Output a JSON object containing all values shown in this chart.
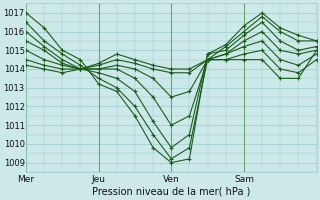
{
  "title": "",
  "xlabel": "Pression niveau de la mer( hPa )",
  "ylabel": "",
  "xlim": [
    0,
    96
  ],
  "ylim": [
    1008.5,
    1017.5
  ],
  "yticks": [
    1009,
    1010,
    1011,
    1012,
    1013,
    1014,
    1015,
    1016,
    1017
  ],
  "xtick_positions": [
    0,
    24,
    48,
    72
  ],
  "xtick_labels": [
    "Mer",
    "Jeu",
    "Ven",
    "Sam"
  ],
  "bg_color": "#cce8e8",
  "grid_color": "#99cccc",
  "line_color": "#1a5c1a",
  "vline_color": "#66aa66",
  "lines": [
    [
      0,
      1017.0,
      6,
      1016.2,
      12,
      1015.0,
      18,
      1014.5,
      24,
      1013.2,
      30,
      1012.8,
      36,
      1011.5,
      42,
      1009.8,
      48,
      1009.0,
      54,
      1009.2,
      60,
      1014.8,
      66,
      1015.0,
      72,
      1015.8,
      78,
      1016.5,
      84,
      1015.5,
      90,
      1015.0,
      96,
      1015.2
    ],
    [
      0,
      1016.5,
      6,
      1015.5,
      12,
      1014.8,
      18,
      1014.2,
      24,
      1013.5,
      30,
      1013.0,
      36,
      1012.0,
      42,
      1010.5,
      48,
      1009.2,
      54,
      1009.8,
      60,
      1014.5,
      66,
      1015.2,
      72,
      1016.0,
      78,
      1016.8,
      84,
      1016.0,
      90,
      1015.5,
      96,
      1015.5
    ],
    [
      0,
      1016.0,
      6,
      1015.2,
      12,
      1014.5,
      18,
      1014.0,
      24,
      1013.8,
      30,
      1013.5,
      36,
      1012.8,
      42,
      1011.2,
      48,
      1009.8,
      54,
      1010.5,
      60,
      1014.8,
      66,
      1015.3,
      72,
      1016.3,
      78,
      1017.0,
      84,
      1016.2,
      90,
      1015.8,
      96,
      1015.5
    ],
    [
      0,
      1015.5,
      6,
      1015.0,
      12,
      1014.3,
      18,
      1014.0,
      24,
      1014.0,
      30,
      1014.0,
      36,
      1013.5,
      42,
      1012.5,
      48,
      1011.0,
      54,
      1011.5,
      60,
      1014.5,
      66,
      1014.8,
      72,
      1015.5,
      78,
      1016.0,
      84,
      1015.0,
      90,
      1014.8,
      96,
      1015.0
    ],
    [
      0,
      1015.0,
      6,
      1014.5,
      12,
      1014.2,
      18,
      1014.0,
      24,
      1014.0,
      30,
      1014.2,
      36,
      1014.0,
      42,
      1013.5,
      48,
      1012.5,
      54,
      1012.8,
      60,
      1014.5,
      66,
      1014.8,
      72,
      1015.2,
      78,
      1015.5,
      84,
      1014.5,
      90,
      1014.2,
      96,
      1014.8
    ],
    [
      0,
      1014.5,
      6,
      1014.2,
      12,
      1014.0,
      18,
      1014.0,
      24,
      1014.2,
      30,
      1014.5,
      36,
      1014.3,
      42,
      1014.0,
      48,
      1013.8,
      54,
      1013.8,
      60,
      1014.5,
      66,
      1014.5,
      72,
      1014.8,
      78,
      1015.0,
      84,
      1014.0,
      90,
      1013.8,
      96,
      1014.5
    ],
    [
      0,
      1014.2,
      6,
      1014.0,
      12,
      1013.8,
      18,
      1014.0,
      24,
      1014.3,
      30,
      1014.8,
      36,
      1014.5,
      42,
      1014.2,
      48,
      1014.0,
      54,
      1014.0,
      60,
      1014.5,
      66,
      1014.5,
      72,
      1014.5,
      78,
      1014.5,
      84,
      1013.5,
      90,
      1013.5,
      96,
      1015.0
    ]
  ]
}
